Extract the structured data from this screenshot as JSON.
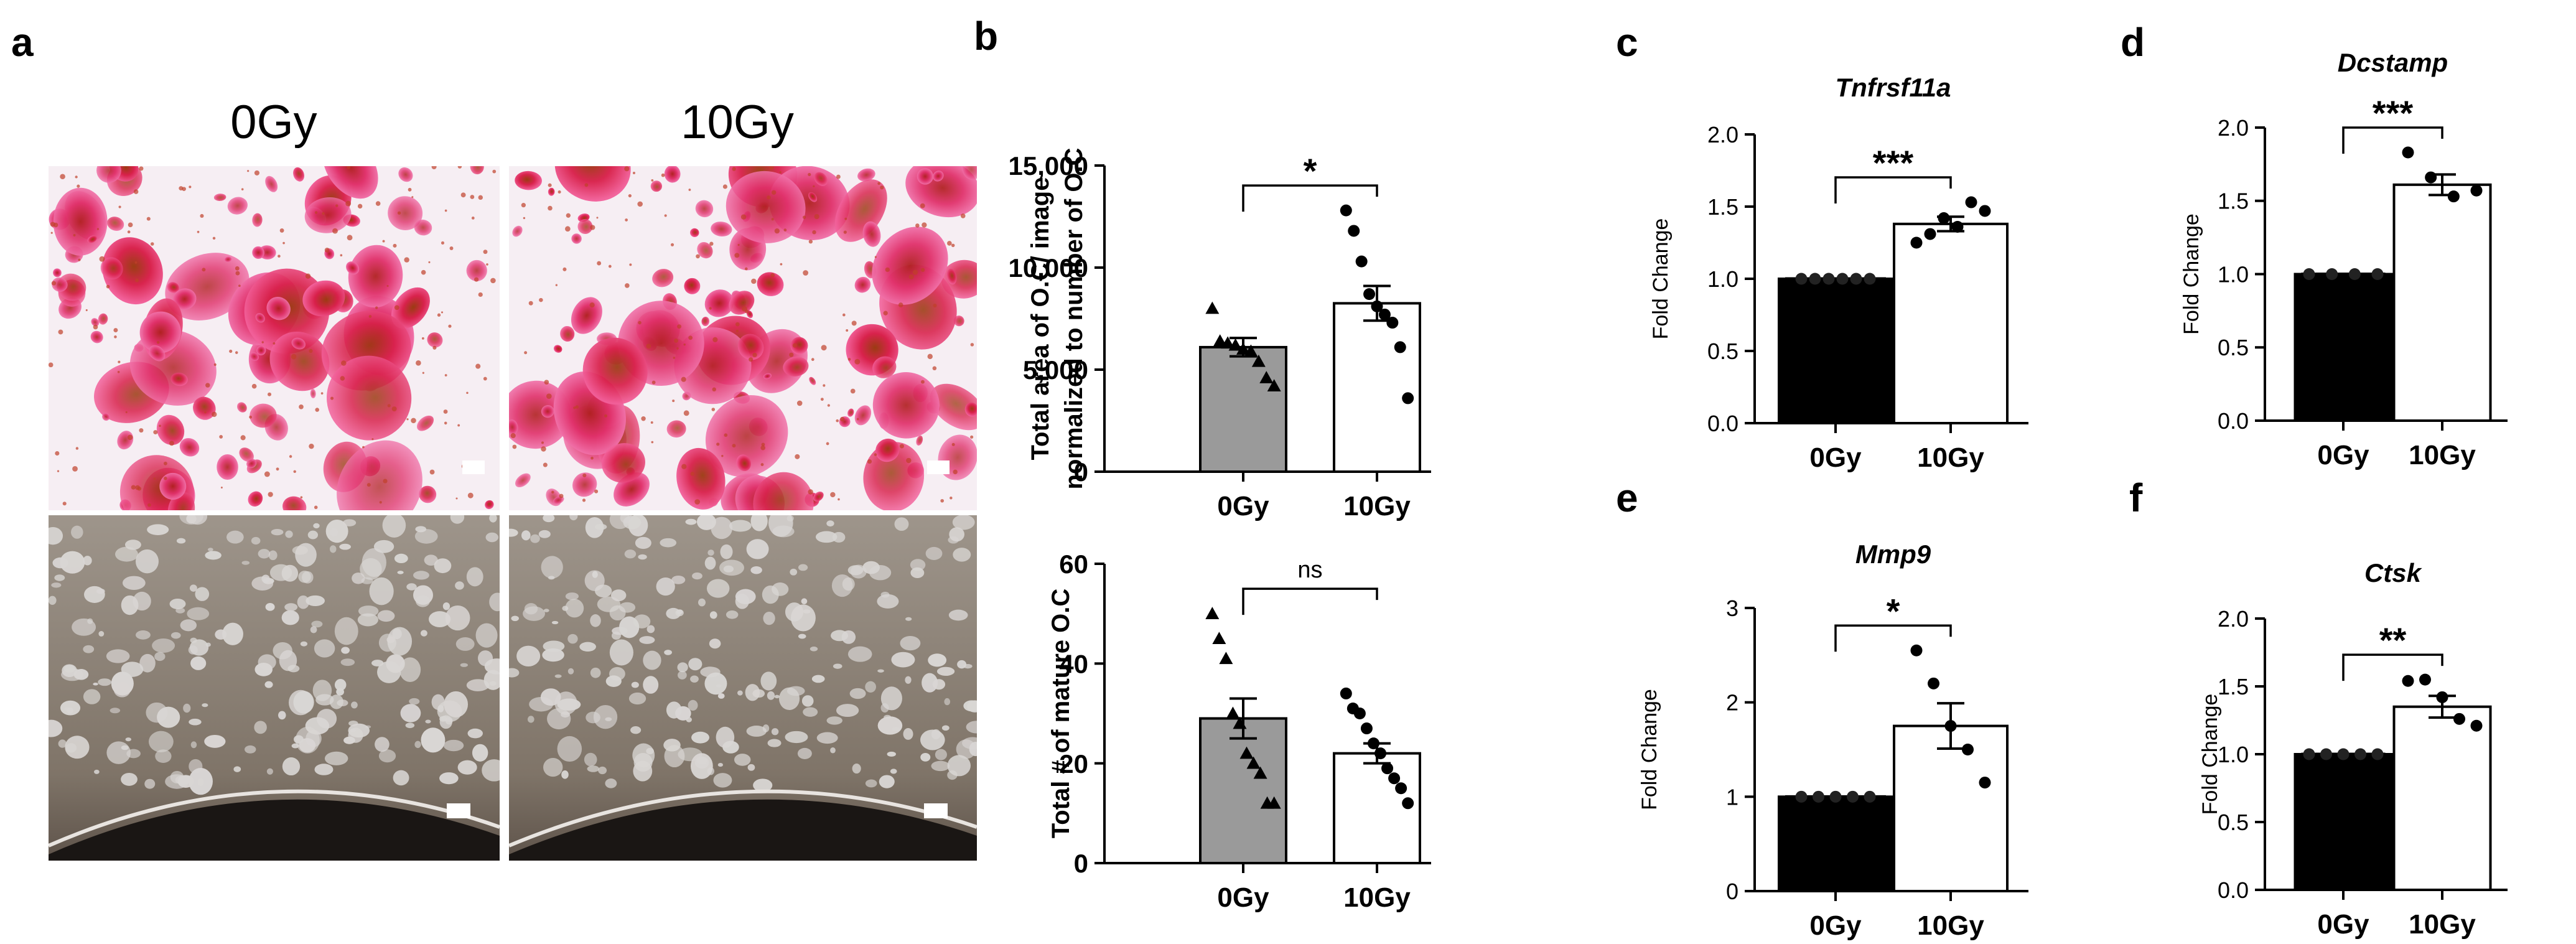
{
  "figure": {
    "panels": [
      {
        "letter": "a",
        "col_labels": [
          "0Gy",
          "10Gy"
        ]
      },
      {
        "letter": "b"
      },
      {
        "letter": "c"
      },
      {
        "letter": "d"
      },
      {
        "letter": "e"
      },
      {
        "letter": "f"
      }
    ]
  },
  "colors": {
    "dark_bar": "#000000",
    "gray_bar": "#9a9a9a",
    "open_bar": "#ffffff",
    "stroke": "#000000"
  },
  "chart_data": [
    {
      "id": "b_top",
      "panel": "b",
      "type": "bar",
      "categories": [
        "0Gy",
        "10Gy"
      ],
      "values": [
        6100,
        8250
      ],
      "sem": [
        450,
        850
      ],
      "points": [
        [
          8000,
          6400,
          6300,
          6200,
          6000,
          5900,
          5400,
          4600,
          4200
        ],
        [
          12800,
          11800,
          10300,
          8700,
          8100,
          7700,
          7300,
          6100,
          3600
        ]
      ],
      "markers": [
        "triangle",
        "circle"
      ],
      "fills": [
        "gray",
        "white"
      ],
      "ylabel": [
        "Total area of O.C/ image",
        "normalized to number of O.C"
      ],
      "ylim": [
        0,
        15000
      ],
      "yticks": [
        0,
        5000,
        10000,
        15000
      ],
      "ytick_labels": [
        "0",
        "5,000",
        "10,000",
        "15,000"
      ],
      "sig": "*",
      "title": ""
    },
    {
      "id": "b_bottom",
      "panel": "b",
      "type": "bar",
      "categories": [
        "0Gy",
        "10Gy"
      ],
      "values": [
        29,
        22
      ],
      "sem": [
        4,
        2
      ],
      "points": [
        [
          50,
          45,
          41,
          30,
          28,
          22,
          20,
          18,
          12,
          12
        ],
        [
          34,
          31,
          30,
          27,
          24,
          22,
          19,
          17,
          15,
          12
        ]
      ],
      "markers": [
        "triangle",
        "circle"
      ],
      "fills": [
        "gray",
        "white"
      ],
      "ylabel": [
        "Total # of mature O.C"
      ],
      "ylim": [
        0,
        60
      ],
      "yticks": [
        0,
        20,
        40,
        60
      ],
      "ytick_labels": [
        "0",
        "20",
        "40",
        "60"
      ],
      "sig": "ns",
      "title": ""
    },
    {
      "id": "c",
      "panel": "c",
      "type": "bar",
      "categories": [
        "0Gy",
        "10Gy"
      ],
      "values": [
        1.0,
        1.38
      ],
      "sem": [
        0.0,
        0.05
      ],
      "points": [
        [
          1.0,
          1.0,
          1.0,
          1.0,
          1.0,
          1.0
        ],
        [
          1.25,
          1.31,
          1.42,
          1.36,
          1.53,
          1.47
        ]
      ],
      "markers": [
        "circle",
        "circle"
      ],
      "fills": [
        "black",
        "white"
      ],
      "ylabel": [
        "Fold Change"
      ],
      "title": "Tnfrsf11a",
      "ylim": [
        0,
        2.0
      ],
      "yticks": [
        0,
        0.5,
        1.0,
        1.5,
        2.0
      ],
      "ytick_labels": [
        "0.0",
        "0.5",
        "1.0",
        "1.5",
        "2.0"
      ],
      "sig": "***"
    },
    {
      "id": "d",
      "panel": "d",
      "type": "bar",
      "categories": [
        "0Gy",
        "10Gy"
      ],
      "values": [
        1.0,
        1.61
      ],
      "sem": [
        0.0,
        0.07
      ],
      "points": [
        [
          1.0,
          1.0,
          1.0,
          1.0
        ],
        [
          1.83,
          1.66,
          1.53,
          1.57
        ]
      ],
      "markers": [
        "circle",
        "circle"
      ],
      "fills": [
        "black",
        "white"
      ],
      "ylabel": [
        "Fold Change"
      ],
      "title": "Dcstamp",
      "ylim": [
        0,
        2.0
      ],
      "yticks": [
        0,
        0.5,
        1.0,
        1.5,
        2.0
      ],
      "ytick_labels": [
        "0.0",
        "0.5",
        "1.0",
        "1.5",
        "2.0"
      ],
      "sig": "***"
    },
    {
      "id": "e",
      "panel": "e",
      "type": "bar",
      "categories": [
        "0Gy",
        "10Gy"
      ],
      "values": [
        1.0,
        1.75
      ],
      "sem": [
        0.0,
        0.24
      ],
      "points": [
        [
          1.0,
          1.0,
          1.0,
          1.0,
          1.0
        ],
        [
          2.55,
          2.2,
          1.75,
          1.5,
          1.15
        ]
      ],
      "markers": [
        "circle",
        "circle"
      ],
      "fills": [
        "black",
        "white"
      ],
      "ylabel": [
        "Fold Change"
      ],
      "title": "Mmp9",
      "ylim": [
        0,
        3
      ],
      "yticks": [
        0,
        1,
        2,
        3
      ],
      "ytick_labels": [
        "0",
        "1",
        "2",
        "3"
      ],
      "sig": "*"
    },
    {
      "id": "f",
      "panel": "f",
      "type": "bar",
      "categories": [
        "0Gy",
        "10Gy"
      ],
      "values": [
        1.0,
        1.35
      ],
      "sem": [
        0.0,
        0.08
      ],
      "points": [
        [
          1.0,
          1.0,
          1.0,
          1.0,
          1.0
        ],
        [
          1.54,
          1.55,
          1.42,
          1.26,
          1.21
        ]
      ],
      "markers": [
        "circle",
        "circle"
      ],
      "fills": [
        "black",
        "white"
      ],
      "ylabel": [
        "Fold Change"
      ],
      "title": "Ctsk",
      "ylim": [
        0,
        2.0
      ],
      "yticks": [
        0,
        0.5,
        1.0,
        1.5,
        2.0
      ],
      "ytick_labels": [
        "0.0",
        "0.5",
        "1.0",
        "1.5",
        "2.0"
      ],
      "sig": "**"
    }
  ]
}
